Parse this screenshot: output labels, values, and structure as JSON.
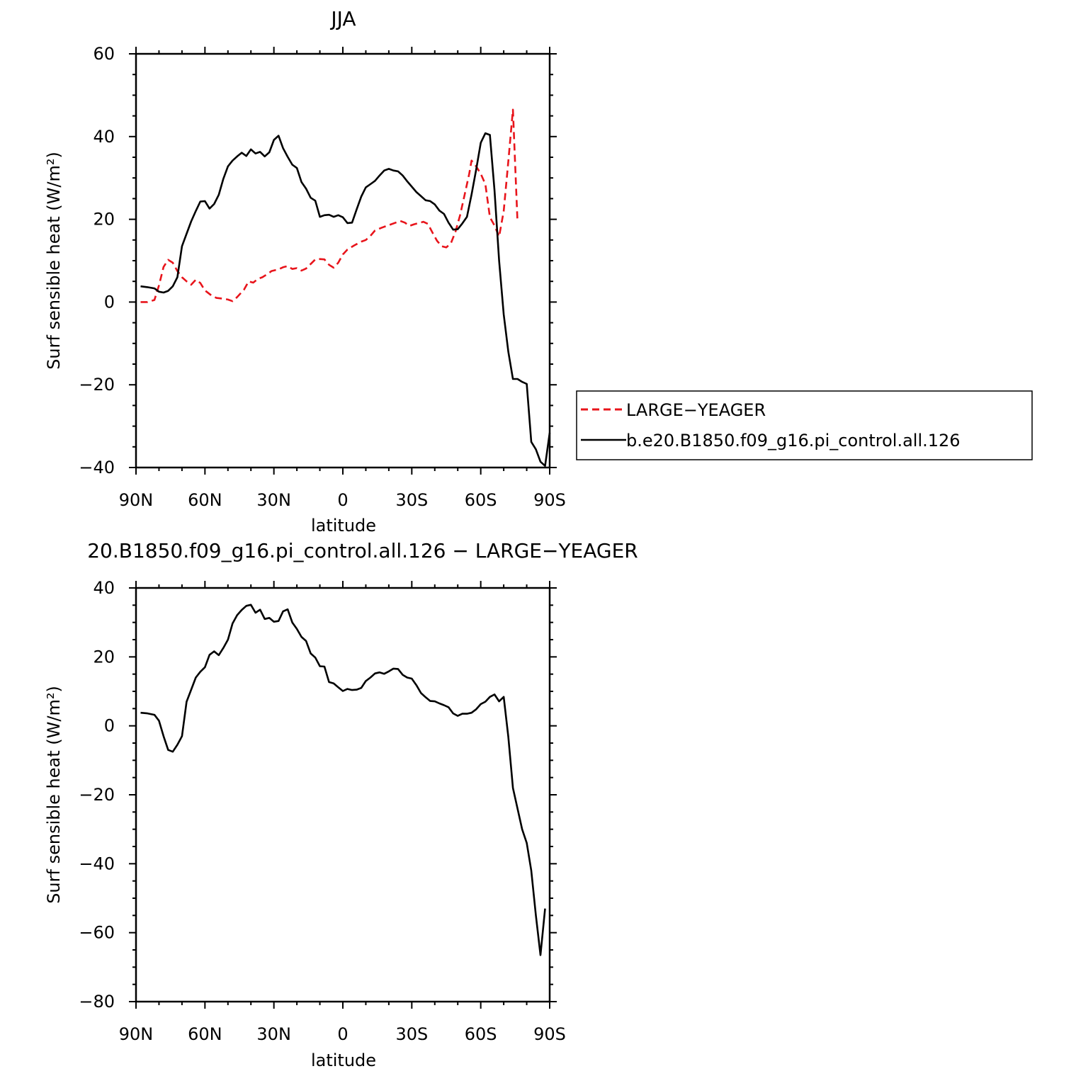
{
  "chart_data": [
    {
      "type": "line",
      "title": "JJA",
      "xlabel": "latitude",
      "ylabel": "Surf sensible heat (W/m²)",
      "xlim": [
        90,
        -90
      ],
      "ylim": [
        -40,
        60
      ],
      "x_ticks": [
        90,
        60,
        30,
        0,
        -30,
        -60,
        -90
      ],
      "x_tick_labels": [
        "90N",
        "60N",
        "30N",
        "0",
        "30S",
        "60S",
        "90S"
      ],
      "y_ticks": [
        -40,
        -20,
        0,
        20,
        40,
        60
      ],
      "y_tick_labels": [
        "−40",
        "−20",
        "0",
        "20",
        "40",
        "60"
      ],
      "legend": "right",
      "series": [
        {
          "name": "LARGE−YEAGER",
          "color": "#e8141b",
          "dash": "dashed",
          "points": [
            [
              88,
              0
            ],
            [
              85,
              0
            ],
            [
              82,
              0.5
            ],
            [
              80,
              4
            ],
            [
              78,
              8.5
            ],
            [
              76,
              10.2
            ],
            [
              74,
              9.5
            ],
            [
              72,
              7.5
            ],
            [
              70,
              6
            ],
            [
              68,
              5
            ],
            [
              66,
              4.2
            ],
            [
              64,
              5.4
            ],
            [
              62,
              4.6
            ],
            [
              60,
              2.8
            ],
            [
              57,
              1.5
            ],
            [
              55,
              1
            ],
            [
              52,
              0.8
            ],
            [
              50,
              0.6
            ],
            [
              48,
              0.2
            ],
            [
              46,
              1.2
            ],
            [
              43,
              3
            ],
            [
              41,
              5
            ],
            [
              39,
              4.7
            ],
            [
              37,
              5.6
            ],
            [
              35,
              6
            ],
            [
              33,
              6.7
            ],
            [
              31,
              7.5
            ],
            [
              28,
              7.9
            ],
            [
              26,
              8.4
            ],
            [
              24,
              8.7
            ],
            [
              22,
              8
            ],
            [
              20,
              8.2
            ],
            [
              18,
              7.6
            ],
            [
              16,
              8.1
            ],
            [
              14,
              9.2
            ],
            [
              12,
              10.3
            ],
            [
              10,
              10.4
            ],
            [
              8,
              10.3
            ],
            [
              6,
              9
            ],
            [
              4,
              8.3
            ],
            [
              2,
              9.5
            ],
            [
              0,
              11.5
            ],
            [
              -2,
              12.7
            ],
            [
              -5,
              13.7
            ],
            [
              -8,
              14.6
            ],
            [
              -10,
              15
            ],
            [
              -12,
              16
            ],
            [
              -14,
              17.3
            ],
            [
              -17,
              18
            ],
            [
              -20,
              18.6
            ],
            [
              -23,
              19.2
            ],
            [
              -25,
              19.6
            ],
            [
              -27,
              19.2
            ],
            [
              -29,
              18.4
            ],
            [
              -31,
              18.8
            ],
            [
              -33,
              19.1
            ],
            [
              -35,
              19.4
            ],
            [
              -37,
              18.9
            ],
            [
              -39,
              16.8
            ],
            [
              -41,
              14.8
            ],
            [
              -43,
              13.5
            ],
            [
              -45,
              13.2
            ],
            [
              -47,
              14.2
            ],
            [
              -49,
              17
            ],
            [
              -51,
              21
            ],
            [
              -53,
              26
            ],
            [
              -55,
              31
            ],
            [
              -56,
              34.2
            ],
            [
              -58,
              32.8
            ],
            [
              -60,
              31
            ],
            [
              -62,
              28.5
            ],
            [
              -64,
              20.5
            ],
            [
              -66,
              18.5
            ],
            [
              -68,
              15.8
            ],
            [
              -70,
              22
            ],
            [
              -72,
              34
            ],
            [
              -74,
              46.5
            ],
            [
              -76,
              19.2
            ]
          ]
        },
        {
          "name": "b.e20.B1850.f09_g16.pi_control.all.126",
          "color": "#000000",
          "dash": "solid",
          "points": [
            [
              88,
              3.8
            ],
            [
              85,
              3.6
            ],
            [
              82,
              3.3
            ],
            [
              80,
              2.5
            ],
            [
              78,
              2.3
            ],
            [
              76,
              2.7
            ],
            [
              74,
              3.8
            ],
            [
              72,
              6
            ],
            [
              70,
              13.5
            ],
            [
              68,
              16.5
            ],
            [
              66,
              19.5
            ],
            [
              64,
              22
            ],
            [
              62,
              24.3
            ],
            [
              60,
              24.4
            ],
            [
              58,
              22.6
            ],
            [
              56,
              23.7
            ],
            [
              54,
              25.9
            ],
            [
              52,
              29.8
            ],
            [
              50,
              32.8
            ],
            [
              48,
              34.2
            ],
            [
              46,
              35.2
            ],
            [
              44,
              36.1
            ],
            [
              42,
              35.3
            ],
            [
              40,
              36.9
            ],
            [
              38,
              35.9
            ],
            [
              36,
              36.3
            ],
            [
              34,
              35.2
            ],
            [
              32,
              36.2
            ],
            [
              30,
              39.2
            ],
            [
              28,
              40.2
            ],
            [
              26,
              37.2
            ],
            [
              24,
              35.1
            ],
            [
              22,
              33.2
            ],
            [
              20,
              32.4
            ],
            [
              18,
              29
            ],
            [
              16,
              27.4
            ],
            [
              14,
              25.2
            ],
            [
              12,
              24.5
            ],
            [
              10,
              20.6
            ],
            [
              8,
              21
            ],
            [
              6,
              21.1
            ],
            [
              4,
              20.6
            ],
            [
              2,
              21
            ],
            [
              0,
              20.5
            ],
            [
              -2,
              19.1
            ],
            [
              -4,
              19.2
            ],
            [
              -6,
              22.4
            ],
            [
              -8,
              25.5
            ],
            [
              -10,
              27.7
            ],
            [
              -12,
              28.5
            ],
            [
              -14,
              29.3
            ],
            [
              -16,
              30.6
            ],
            [
              -18,
              31.8
            ],
            [
              -20,
              32.2
            ],
            [
              -22,
              31.8
            ],
            [
              -24,
              31.6
            ],
            [
              -26,
              30.6
            ],
            [
              -28,
              29.2
            ],
            [
              -30,
              27.9
            ],
            [
              -32,
              26.6
            ],
            [
              -34,
              25.6
            ],
            [
              -36,
              24.6
            ],
            [
              -38,
              24.4
            ],
            [
              -40,
              23.6
            ],
            [
              -42,
              22.1
            ],
            [
              -44,
              21.3
            ],
            [
              -46,
              19.2
            ],
            [
              -48,
              17.5
            ],
            [
              -50,
              17.6
            ],
            [
              -52,
              19
            ],
            [
              -54,
              20.6
            ],
            [
              -56,
              26
            ],
            [
              -58,
              32
            ],
            [
              -60,
              38.5
            ],
            [
              -62,
              40.8
            ],
            [
              -64,
              40.4
            ],
            [
              -66,
              27
            ],
            [
              -68,
              10
            ],
            [
              -70,
              -3
            ],
            [
              -72,
              -12
            ],
            [
              -74,
              -18.6
            ],
            [
              -76,
              -18.6
            ],
            [
              -78,
              -19.3
            ],
            [
              -80,
              -19.8
            ],
            [
              -82,
              -33.8
            ],
            [
              -84,
              -35.6
            ],
            [
              -86,
              -38.6
            ],
            [
              -88,
              -39.6
            ],
            [
              -90,
              -31.6
            ]
          ]
        }
      ]
    },
    {
      "type": "line",
      "title": "20.B1850.f09_g16.pi_control.all.126 − LARGE−YEAGER",
      "xlabel": "latitude",
      "ylabel": "Surf sensible heat (W/m²)",
      "xlim": [
        90,
        -90
      ],
      "ylim": [
        -80,
        40
      ],
      "x_ticks": [
        90,
        60,
        30,
        0,
        -30,
        -60,
        -90
      ],
      "x_tick_labels": [
        "90N",
        "60N",
        "30N",
        "0",
        "30S",
        "60S",
        "90S"
      ],
      "y_ticks": [
        -80,
        -60,
        -40,
        -20,
        0,
        20,
        40
      ],
      "y_tick_labels": [
        "−80",
        "−60",
        "−40",
        "−20",
        "0",
        "20",
        "40"
      ],
      "series": [
        {
          "color": "#000000",
          "dash": "solid",
          "points": [
            [
              88,
              3.8
            ],
            [
              85,
              3.6
            ],
            [
              82,
              3.2
            ],
            [
              80,
              1.5
            ],
            [
              78,
              -3
            ],
            [
              76,
              -7
            ],
            [
              74,
              -7.5
            ],
            [
              72,
              -5.5
            ],
            [
              70,
              -3
            ],
            [
              68,
              7
            ],
            [
              66,
              10.5
            ],
            [
              64,
              14
            ],
            [
              62,
              15.7
            ],
            [
              60,
              17
            ],
            [
              58,
              20.6
            ],
            [
              56,
              21.6
            ],
            [
              54,
              20.5
            ],
            [
              52,
              22.6
            ],
            [
              50,
              25
            ],
            [
              48,
              29.7
            ],
            [
              46,
              32.1
            ],
            [
              44,
              33.6
            ],
            [
              42,
              34.8
            ],
            [
              40,
              35.1
            ],
            [
              38,
              32.8
            ],
            [
              36,
              33.7
            ],
            [
              34,
              31
            ],
            [
              32,
              31.3
            ],
            [
              30,
              30.2
            ],
            [
              28,
              30.4
            ],
            [
              26,
              33.2
            ],
            [
              24,
              33.8
            ],
            [
              22,
              30
            ],
            [
              20,
              28.1
            ],
            [
              18,
              25.8
            ],
            [
              16,
              24.6
            ],
            [
              14,
              21
            ],
            [
              12,
              19.8
            ],
            [
              10,
              17.3
            ],
            [
              8,
              17.2
            ],
            [
              6,
              12.7
            ],
            [
              4,
              12.3
            ],
            [
              2,
              11.2
            ],
            [
              0,
              10.1
            ],
            [
              -2,
              10.7
            ],
            [
              -4,
              10.4
            ],
            [
              -6,
              10.5
            ],
            [
              -8,
              11
            ],
            [
              -10,
              13
            ],
            [
              -12,
              14
            ],
            [
              -14,
              15.2
            ],
            [
              -16,
              15.5
            ],
            [
              -18,
              15.1
            ],
            [
              -20,
              15.8
            ],
            [
              -22,
              16.6
            ],
            [
              -24,
              16.5
            ],
            [
              -26,
              14.8
            ],
            [
              -28,
              14
            ],
            [
              -30,
              13.7
            ],
            [
              -32,
              11.8
            ],
            [
              -34,
              9.5
            ],
            [
              -36,
              8.3
            ],
            [
              -38,
              7.2
            ],
            [
              -40,
              7.1
            ],
            [
              -42,
              6.5
            ],
            [
              -44,
              6
            ],
            [
              -46,
              5.4
            ],
            [
              -48,
              3.6
            ],
            [
              -50,
              2.9
            ],
            [
              -52,
              3.5
            ],
            [
              -54,
              3.5
            ],
            [
              -56,
              3.8
            ],
            [
              -58,
              4.8
            ],
            [
              -60,
              6.3
            ],
            [
              -62,
              7
            ],
            [
              -64,
              8.4
            ],
            [
              -66,
              9.1
            ],
            [
              -68,
              7.1
            ],
            [
              -70,
              8.4
            ],
            [
              -72,
              -3.2
            ],
            [
              -74,
              -18
            ],
            [
              -76,
              -24
            ],
            [
              -78,
              -30
            ],
            [
              -80,
              -34
            ],
            [
              -82,
              -42
            ],
            [
              -84,
              -55
            ],
            [
              -86,
              -66.5
            ],
            [
              -88,
              -53
            ]
          ]
        }
      ]
    }
  ]
}
